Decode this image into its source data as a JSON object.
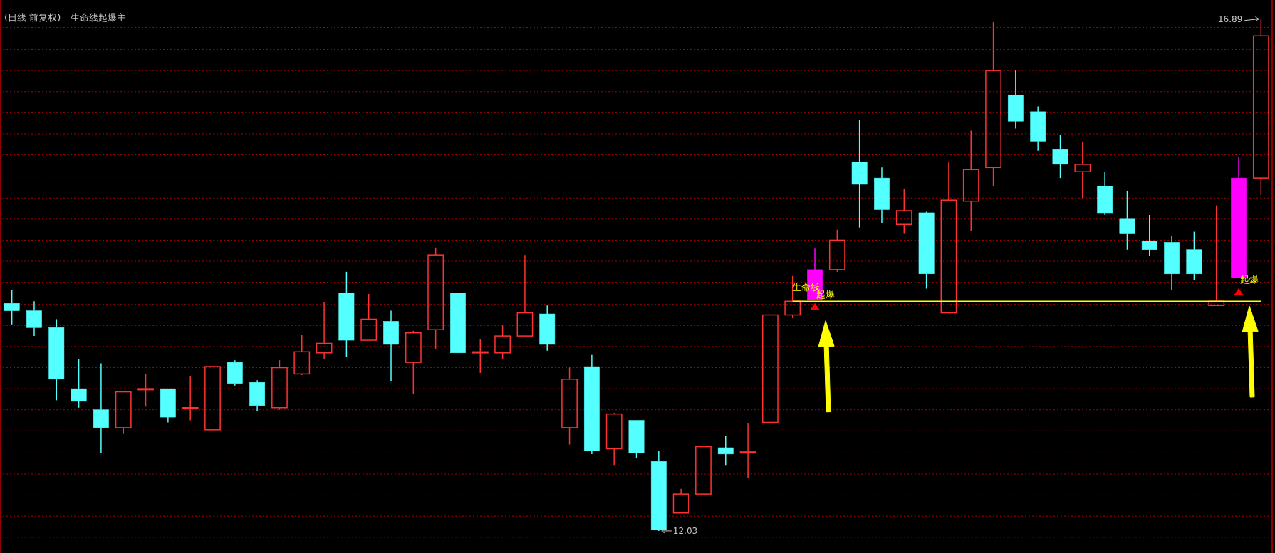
{
  "chart_data": {
    "type": "candlestick",
    "title": "(日线 前复权)",
    "subtitle": "生命线起爆主",
    "categories": [
      null,
      null,
      null,
      null,
      null,
      null,
      null,
      null,
      null,
      null,
      null,
      null,
      null,
      null,
      null,
      null,
      null,
      null,
      null,
      null,
      null,
      null,
      null,
      null,
      null,
      null,
      null,
      null,
      null,
      null,
      null,
      null,
      null,
      null,
      null,
      null,
      null,
      null,
      null,
      null,
      null,
      null,
      null,
      null,
      null,
      null,
      null,
      null,
      null,
      null,
      null,
      null,
      null,
      null,
      null,
      null,
      null
    ],
    "ohlc": [
      [
        14.19,
        14.32,
        13.99,
        14.12
      ],
      [
        14.12,
        14.21,
        13.88,
        13.96
      ],
      [
        13.96,
        14.04,
        13.27,
        13.47
      ],
      [
        13.38,
        13.66,
        13.2,
        13.26
      ],
      [
        13.18,
        13.62,
        12.77,
        13.01
      ],
      [
        13.01,
        13.35,
        12.95,
        13.35
      ],
      [
        13.38,
        13.52,
        13.21,
        13.38
      ],
      [
        13.38,
        13.38,
        13.06,
        13.11
      ],
      [
        13.2,
        13.5,
        13.08,
        13.2
      ],
      [
        12.99,
        13.59,
        12.99,
        13.59
      ],
      [
        13.63,
        13.65,
        13.41,
        13.43
      ],
      [
        13.44,
        13.46,
        13.17,
        13.22
      ],
      [
        13.2,
        13.65,
        13.18,
        13.58
      ],
      [
        13.52,
        13.89,
        13.51,
        13.73
      ],
      [
        13.72,
        14.2,
        13.66,
        13.81
      ],
      [
        14.29,
        14.49,
        13.68,
        13.84
      ],
      [
        13.84,
        14.28,
        13.84,
        14.04
      ],
      [
        14.02,
        14.12,
        13.45,
        13.8
      ],
      [
        13.63,
        13.93,
        13.33,
        13.91
      ],
      [
        13.94,
        14.72,
        13.76,
        14.65
      ],
      [
        14.29,
        14.29,
        13.72,
        13.72
      ],
      [
        13.73,
        13.85,
        13.53,
        13.73
      ],
      [
        13.72,
        13.98,
        13.66,
        13.88
      ],
      [
        13.88,
        14.65,
        13.88,
        14.1
      ],
      [
        14.09,
        14.17,
        13.74,
        13.8
      ],
      [
        13.01,
        13.58,
        12.85,
        13.47
      ],
      [
        13.59,
        13.7,
        12.76,
        12.79
      ],
      [
        12.81,
        13.15,
        12.65,
        13.14
      ],
      [
        13.08,
        13.08,
        12.72,
        12.77
      ],
      [
        12.69,
        12.79,
        12.03,
        12.04
      ],
      [
        12.2,
        12.43,
        12.2,
        12.38
      ],
      [
        12.38,
        12.84,
        12.38,
        12.83
      ],
      [
        12.82,
        12.93,
        12.65,
        12.76
      ],
      [
        12.78,
        13.05,
        12.53,
        12.78
      ],
      [
        13.06,
        14.08,
        13.06,
        14.08
      ],
      [
        14.08,
        14.45,
        14.05,
        14.21
      ],
      [
        14.22,
        14.71,
        14.22,
        14.51
      ],
      [
        14.51,
        14.89,
        14.49,
        14.79
      ],
      [
        15.53,
        15.93,
        14.91,
        15.32
      ],
      [
        15.38,
        15.48,
        14.95,
        15.08
      ],
      [
        14.94,
        15.28,
        14.85,
        15.07
      ],
      [
        15.05,
        15.06,
        14.33,
        14.47
      ],
      [
        14.1,
        15.53,
        14.1,
        15.17
      ],
      [
        15.16,
        15.83,
        14.88,
        15.46
      ],
      [
        15.48,
        16.86,
        15.3,
        16.4
      ],
      [
        16.17,
        16.4,
        15.85,
        15.92
      ],
      [
        16.01,
        16.06,
        15.64,
        15.73
      ],
      [
        15.65,
        15.79,
        15.38,
        15.51
      ],
      [
        15.44,
        15.72,
        15.19,
        15.51
      ],
      [
        15.3,
        15.44,
        15.03,
        15.05
      ],
      [
        14.99,
        15.26,
        14.7,
        14.85
      ],
      [
        14.78,
        15.03,
        14.64,
        14.7
      ],
      [
        14.77,
        14.83,
        14.32,
        14.47
      ],
      [
        14.7,
        14.87,
        14.41,
        14.47
      ],
      [
        14.17,
        15.12,
        14.17,
        14.21
      ],
      [
        14.43,
        15.58,
        14.43,
        15.38
      ],
      [
        15.38,
        16.89,
        15.22,
        16.73
      ]
    ],
    "colors": [
      "#54ffff",
      "#54ffff",
      "#54ffff",
      "#54ffff",
      "#54ffff",
      "#ff3232",
      "#ff3232",
      "#54ffff",
      "#ff3232",
      "#ff3232",
      "#54ffff",
      "#54ffff",
      "#ff3232",
      "#ff3232",
      "#ff3232",
      "#54ffff",
      "#ff3232",
      "#54ffff",
      "#ff3232",
      "#ff3232",
      "#54ffff",
      "#ff3232",
      "#ff3232",
      "#ff3232",
      "#54ffff",
      "#ff3232",
      "#54ffff",
      "#ff3232",
      "#54ffff",
      "#54ffff",
      "#ff3232",
      "#ff3232",
      "#54ffff",
      "#ff3232",
      "#ff3232",
      "#ff3232",
      "#ff00ff",
      "#ff3232",
      "#54ffff",
      "#54ffff",
      "#ff3232",
      "#54ffff",
      "#ff3232",
      "#ff3232",
      "#ff3232",
      "#54ffff",
      "#54ffff",
      "#54ffff",
      "#ff3232",
      "#54ffff",
      "#54ffff",
      "#54ffff",
      "#54ffff",
      "#54ffff",
      "#ff3232",
      "#ff00ff",
      "#ff3232"
    ],
    "ylim": [
      11.82,
      17.07
    ],
    "yticks": [
      {
        "value": 11.97,
        "label": null
      },
      {
        "value": 12.17,
        "label": null
      },
      {
        "value": 12.37,
        "label": null
      },
      {
        "value": 12.57,
        "label": null
      },
      {
        "value": 12.77,
        "label": null
      },
      {
        "value": 12.98,
        "label": null
      },
      {
        "value": 13.18,
        "label": null
      },
      {
        "value": 13.38,
        "label": null
      },
      {
        "value": 13.58,
        "label": null
      },
      {
        "value": 13.78,
        "label": null
      },
      {
        "value": 13.98,
        "label": null
      },
      {
        "value": 14.18,
        "label": null
      },
      {
        "value": 14.39,
        "label": null
      },
      {
        "value": 14.59,
        "label": null
      },
      {
        "value": 14.79,
        "label": null
      },
      {
        "value": 14.99,
        "label": null
      },
      {
        "value": 15.19,
        "label": null
      },
      {
        "value": 15.39,
        "label": null
      },
      {
        "value": 15.6,
        "label": null
      },
      {
        "value": 15.8,
        "label": null
      },
      {
        "value": 16.0,
        "label": null
      },
      {
        "value": 16.2,
        "label": null
      },
      {
        "value": 16.4,
        "label": null
      },
      {
        "value": 16.6,
        "label": null
      },
      {
        "value": 16.81,
        "label": null
      }
    ],
    "grid": "y",
    "annotations": [
      "16.89",
      "12.03"
    ],
    "series": [
      {
        "type": "line",
        "name": "生命线",
        "color": "#ffff00",
        "values": [
          null,
          null,
          null,
          null,
          null,
          null,
          null,
          null,
          null,
          null,
          null,
          null,
          null,
          null,
          null,
          null,
          null,
          null,
          null,
          null,
          null,
          null,
          null,
          null,
          null,
          null,
          null,
          null,
          null,
          null,
          null,
          null,
          null,
          null,
          null,
          14.21,
          14.21,
          14.21,
          14.21,
          14.21,
          14.21,
          14.21,
          14.21,
          14.21,
          14.21,
          14.21,
          14.21,
          14.21,
          14.21,
          14.21,
          14.21,
          14.21,
          14.21,
          14.21,
          14.21,
          14.21,
          14.21
        ]
      },
      {
        "type": "scatter",
        "name": "起爆",
        "color": "#ff0000",
        "marker": "triangle",
        "values": [
          null,
          null,
          null,
          null,
          null,
          null,
          null,
          null,
          null,
          null,
          null,
          null,
          null,
          null,
          null,
          null,
          null,
          null,
          null,
          null,
          null,
          null,
          null,
          null,
          null,
          null,
          null,
          null,
          null,
          null,
          null,
          null,
          null,
          null,
          null,
          null,
          14.16,
          null,
          null,
          null,
          null,
          null,
          null,
          null,
          null,
          null,
          null,
          null,
          null,
          null,
          null,
          null,
          null,
          null,
          null,
          14.3,
          null
        ]
      }
    ]
  }
}
